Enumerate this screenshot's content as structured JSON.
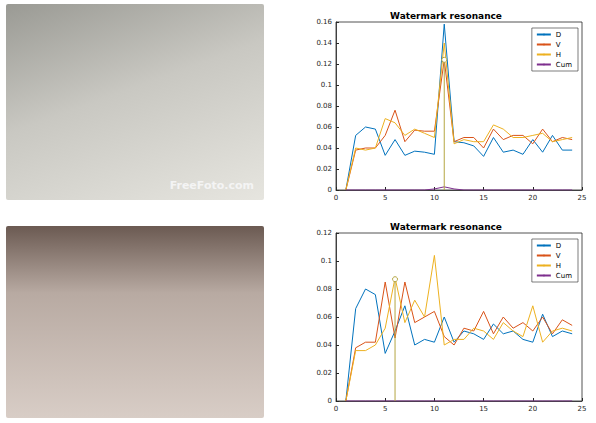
{
  "chart_data": [
    {
      "type": "line",
      "title": "Watermark resonance",
      "x": [
        1,
        2,
        3,
        4,
        5,
        6,
        7,
        8,
        9,
        10,
        11,
        12,
        13,
        14,
        15,
        16,
        17,
        18,
        19,
        20,
        21,
        22,
        23,
        24
      ],
      "xlim": [
        0,
        25
      ],
      "xticks": [
        0,
        5,
        10,
        15,
        20,
        25
      ],
      "ylim": [
        0,
        0.16
      ],
      "yticks": [
        0,
        0.02,
        0.04,
        0.06,
        0.08,
        0.1,
        0.12,
        0.14,
        0.16
      ],
      "grid": false,
      "legend": "upper right",
      "series": [
        {
          "name": "D",
          "color": "#0072bd",
          "values": [
            0,
            0.052,
            0.06,
            0.058,
            0.033,
            0.048,
            0.033,
            0.037,
            0.036,
            0.034,
            0.158,
            0.046,
            0.045,
            0.042,
            0.032,
            0.05,
            0.036,
            0.038,
            0.034,
            0.048,
            0.036,
            0.052,
            0.038,
            0.038
          ]
        },
        {
          "name": "V",
          "color": "#d95319",
          "values": [
            0,
            0.038,
            0.04,
            0.04,
            0.052,
            0.076,
            0.046,
            0.057,
            0.056,
            0.056,
            0.124,
            0.046,
            0.05,
            0.05,
            0.04,
            0.058,
            0.048,
            0.052,
            0.052,
            0.044,
            0.058,
            0.046,
            0.05,
            0.048
          ]
        },
        {
          "name": "H",
          "color": "#edb120",
          "values": [
            0,
            0.04,
            0.038,
            0.04,
            0.068,
            0.064,
            0.052,
            0.058,
            0.054,
            0.05,
            0.14,
            0.044,
            0.048,
            0.046,
            0.046,
            0.062,
            0.058,
            0.05,
            0.05,
            0.052,
            0.054,
            0.046,
            0.048,
            0.05
          ]
        },
        {
          "name": "Cum",
          "color": "#7e2f8e",
          "values": [
            0,
            0,
            0,
            0,
            0,
            0,
            0,
            0,
            0,
            0.001,
            0.003,
            0.001,
            0,
            0,
            0,
            0,
            0,
            0,
            0,
            0,
            0,
            0,
            0,
            0
          ]
        }
      ],
      "peak": {
        "x": 11,
        "y": 0.124,
        "color": "#b5a642"
      }
    },
    {
      "type": "line",
      "title": "Watermark resonance",
      "x": [
        1,
        2,
        3,
        4,
        5,
        6,
        7,
        8,
        9,
        10,
        11,
        12,
        13,
        14,
        15,
        16,
        17,
        18,
        19,
        20,
        21,
        22,
        23,
        24
      ],
      "xlim": [
        0,
        25
      ],
      "xticks": [
        0,
        5,
        10,
        15,
        20,
        25
      ],
      "ylim": [
        0,
        0.12
      ],
      "yticks": [
        0,
        0.02,
        0.04,
        0.06,
        0.08,
        0.1,
        0.12
      ],
      "grid": false,
      "legend": "upper right",
      "series": [
        {
          "name": "D",
          "color": "#0072bd",
          "values": [
            0,
            0.066,
            0.08,
            0.076,
            0.034,
            0.05,
            0.068,
            0.04,
            0.044,
            0.042,
            0.06,
            0.042,
            0.05,
            0.048,
            0.044,
            0.055,
            0.048,
            0.05,
            0.044,
            0.042,
            0.062,
            0.046,
            0.05,
            0.048
          ]
        },
        {
          "name": "V",
          "color": "#d95319",
          "values": [
            0,
            0.038,
            0.042,
            0.042,
            0.085,
            0.045,
            0.085,
            0.056,
            0.06,
            0.064,
            0.046,
            0.04,
            0.052,
            0.05,
            0.064,
            0.048,
            0.06,
            0.052,
            0.056,
            0.05,
            0.06,
            0.048,
            0.058,
            0.054
          ]
        },
        {
          "name": "H",
          "color": "#edb120",
          "values": [
            0,
            0.036,
            0.036,
            0.04,
            0.052,
            0.088,
            0.056,
            0.072,
            0.06,
            0.104,
            0.04,
            0.044,
            0.044,
            0.052,
            0.05,
            0.044,
            0.056,
            0.05,
            0.046,
            0.068,
            0.042,
            0.05,
            0.052,
            0.05
          ]
        },
        {
          "name": "Cum",
          "color": "#7e2f8e",
          "values": [
            0,
            0,
            0,
            0,
            0,
            0,
            0,
            0,
            0,
            0,
            0,
            0,
            0,
            0,
            0,
            0,
            0,
            0,
            0,
            0,
            0,
            0,
            0,
            0
          ]
        }
      ],
      "peak": {
        "x": 6,
        "y": 0.087,
        "color": "#b5a642"
      }
    }
  ],
  "photo_texts": [
    "FreeFoto.com"
  ]
}
